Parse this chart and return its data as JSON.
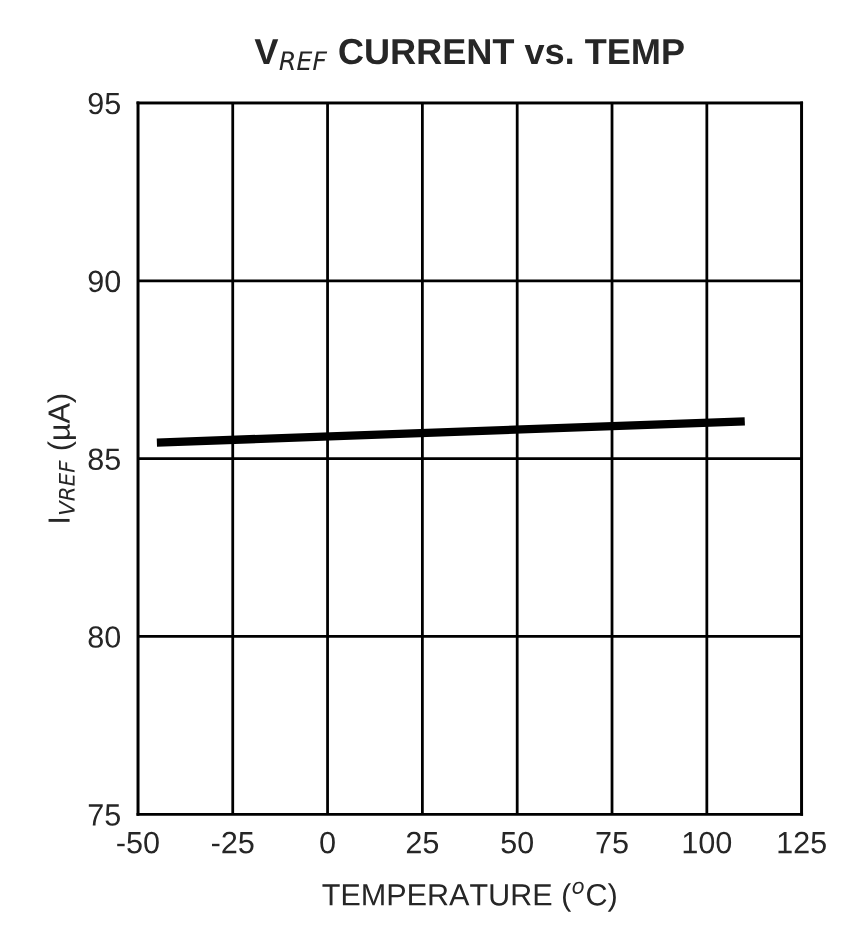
{
  "chart_data": {
    "type": "line",
    "title": "V$_{REF}$ CURRENT vs. TEMP",
    "xlabel": "TEMPERATURE ($^{o}$C)",
    "ylabel": "I$_{VREF}$ (µA)",
    "series": [
      {
        "color": "#000000",
        "x": [
          -45,
          110
        ],
        "values": [
          85.45,
          86.05
        ]
      }
    ],
    "xlim": [
      -50,
      125
    ],
    "xticks": [
      -50,
      -25,
      0,
      25,
      50,
      75,
      100,
      125
    ],
    "ylim": [
      75,
      95
    ],
    "yticks": [
      75,
      80,
      85,
      90,
      95
    ],
    "grid": true,
    "marker": "none",
    "line_style": "solid"
  }
}
